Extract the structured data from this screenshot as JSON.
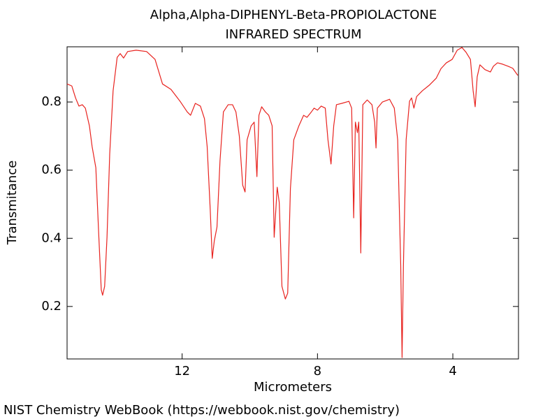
{
  "chart_data": {
    "type": "line",
    "title": "Alpha,Alpha-DIPHENYL-Beta-PROPIOLACTONE",
    "subtitle": "INFRARED SPECTRUM",
    "x_label": "Micrometers",
    "y_label": "Transmitance",
    "source": "NIST Chemistry WebBook (https://webbook.nist.gov/chemistry)",
    "xlim": [
      15.4,
      2.06
    ],
    "ylim": [
      0.046,
      0.962
    ],
    "xticks": [
      12,
      8,
      4
    ],
    "yticks": [
      0.2,
      0.4,
      0.6,
      0.8
    ],
    "grid": false,
    "series": [
      {
        "name": "IR spectrum",
        "color": "#e8231f",
        "x": [
          15.4,
          15.26,
          15.15,
          15.05,
          14.95,
          14.86,
          14.74,
          14.66,
          14.55,
          14.47,
          14.39,
          14.35,
          14.29,
          14.22,
          14.14,
          14.04,
          13.92,
          13.83,
          13.73,
          13.61,
          13.36,
          13.05,
          12.8,
          12.58,
          12.33,
          12.06,
          11.85,
          11.75,
          11.61,
          11.46,
          11.34,
          11.26,
          11.17,
          11.11,
          11.05,
          10.97,
          10.88,
          10.78,
          10.64,
          10.51,
          10.41,
          10.31,
          10.21,
          10.14,
          10.08,
          9.96,
          9.87,
          9.79,
          9.73,
          9.65,
          9.54,
          9.44,
          9.34,
          9.28,
          9.19,
          9.13,
          9.05,
          8.95,
          8.88,
          8.8,
          8.7,
          8.55,
          8.41,
          8.31,
          8.18,
          8.1,
          8.0,
          7.89,
          7.77,
          7.69,
          7.6,
          7.52,
          7.44,
          7.28,
          7.07,
          6.99,
          6.93,
          6.88,
          6.82,
          6.78,
          6.72,
          6.66,
          6.53,
          6.39,
          6.31,
          6.27,
          6.23,
          6.08,
          5.87,
          5.73,
          5.63,
          5.54,
          5.5,
          5.46,
          5.38,
          5.28,
          5.22,
          5.15,
          5.07,
          4.9,
          4.7,
          4.49,
          4.35,
          4.19,
          4.02,
          3.87,
          3.73,
          3.61,
          3.48,
          3.4,
          3.34,
          3.28,
          3.2,
          3.05,
          2.89,
          2.8,
          2.68,
          2.53,
          2.37,
          2.23,
          2.08
        ],
        "values": [
          0.853,
          0.847,
          0.812,
          0.788,
          0.792,
          0.782,
          0.73,
          0.669,
          0.607,
          0.423,
          0.249,
          0.233,
          0.259,
          0.403,
          0.648,
          0.833,
          0.931,
          0.942,
          0.929,
          0.948,
          0.952,
          0.948,
          0.925,
          0.853,
          0.837,
          0.802,
          0.771,
          0.761,
          0.796,
          0.788,
          0.751,
          0.669,
          0.485,
          0.341,
          0.392,
          0.433,
          0.628,
          0.771,
          0.792,
          0.792,
          0.771,
          0.7,
          0.556,
          0.536,
          0.689,
          0.73,
          0.741,
          0.581,
          0.761,
          0.786,
          0.771,
          0.761,
          0.73,
          0.403,
          0.55,
          0.505,
          0.259,
          0.222,
          0.239,
          0.546,
          0.689,
          0.73,
          0.761,
          0.755,
          0.771,
          0.782,
          0.776,
          0.788,
          0.782,
          0.689,
          0.618,
          0.73,
          0.792,
          0.796,
          0.802,
          0.782,
          0.46,
          0.741,
          0.71,
          0.741,
          0.357,
          0.792,
          0.806,
          0.792,
          0.741,
          0.665,
          0.782,
          0.8,
          0.808,
          0.782,
          0.689,
          0.321,
          0.05,
          0.321,
          0.689,
          0.802,
          0.812,
          0.782,
          0.816,
          0.833,
          0.849,
          0.87,
          0.898,
          0.915,
          0.925,
          0.952,
          0.96,
          0.946,
          0.925,
          0.833,
          0.786,
          0.874,
          0.909,
          0.895,
          0.888,
          0.905,
          0.915,
          0.911,
          0.905,
          0.899,
          0.878
        ]
      }
    ]
  }
}
